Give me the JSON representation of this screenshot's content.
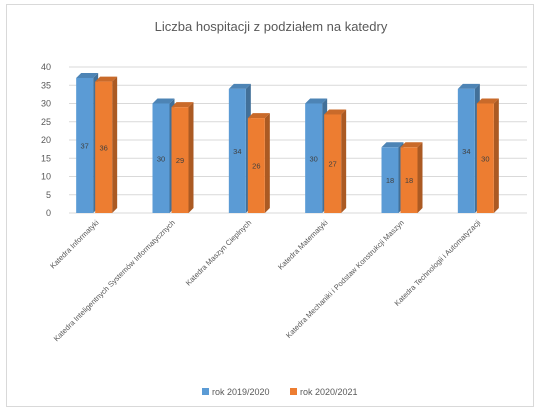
{
  "chart_data": {
    "type": "bar",
    "title": "Liczba hospitacji z podziałem na katedry",
    "categories": [
      "Katedra Informatyki",
      "Katedra Inteligentnych Systemów Informatycznych",
      "Katedra Maszyn Cieplnych",
      "Katedra Matematyki",
      "Katedra Mechaniki i Podstaw Konstrukcji Maszyn",
      "Katedra Technologii i Automatyzacji"
    ],
    "series": [
      {
        "name": "rok 2019/2020",
        "values": [
          37,
          30,
          34,
          30,
          18,
          34
        ],
        "color": "#5b9bd5"
      },
      {
        "name": "rok 2020/2021",
        "values": [
          36,
          29,
          26,
          27,
          18,
          30
        ],
        "color": "#ed7d31"
      }
    ],
    "ylim": [
      0,
      40
    ],
    "yticks": [
      0,
      5,
      10,
      15,
      20,
      25,
      30,
      35,
      40
    ],
    "grid": true,
    "legend": "bottom",
    "style": "3d-clustered-column"
  }
}
